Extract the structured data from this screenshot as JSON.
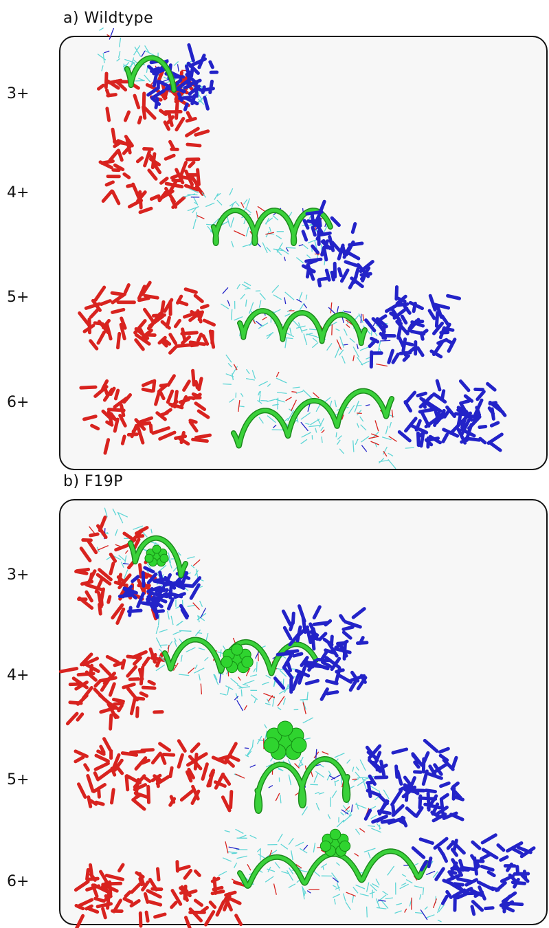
{
  "figure": {
    "panels": [
      {
        "title": "a) Wildtype",
        "charge_states": [
          "3+",
          "4+",
          "5+",
          "6+"
        ]
      },
      {
        "title": "b) F19P",
        "charge_states": [
          "3+",
          "4+",
          "5+",
          "6+"
        ]
      }
    ],
    "colors": {
      "n_terminal_region": "#d8231f",
      "c_terminal_region": "#2323c8",
      "backbone_ribbon": "#3ad13a",
      "side_chains": "#5fd6d6",
      "highlight_residue": "#2fd42f",
      "panel_background": "#f7f7f7",
      "panel_border": "#111111"
    }
  }
}
